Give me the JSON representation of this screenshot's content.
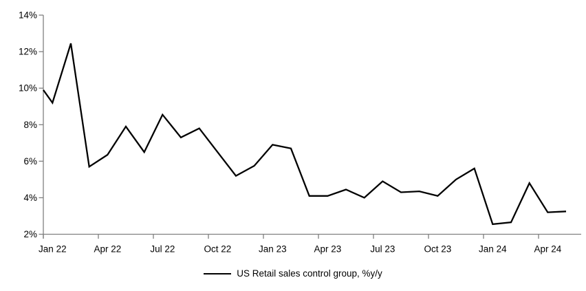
{
  "chart_data": {
    "type": "line",
    "title": "",
    "legend_label": "US Retail sales control group, %y/y",
    "series": [
      {
        "name": "US Retail sales control group, %y/y",
        "values": [
          9.9,
          9.2,
          12.45,
          5.7,
          6.35,
          7.9,
          6.5,
          8.55,
          7.3,
          7.8,
          6.5,
          5.2,
          5.75,
          6.9,
          6.7,
          4.1,
          4.1,
          4.45,
          4.0,
          4.9,
          4.3,
          4.35,
          4.1,
          5.0,
          5.6,
          2.55,
          2.65,
          4.8,
          3.2,
          3.25
        ]
      }
    ],
    "x": [
      "Dec 21",
      "Jan 22",
      "Feb 22",
      "Mar 22",
      "Apr 22",
      "May 22",
      "Jun 22",
      "Jul 22",
      "Aug 22",
      "Sep 22",
      "Oct 22",
      "Nov 22",
      "Dec 22",
      "Jan 23",
      "Feb 23",
      "Mar 23",
      "Apr 23",
      "May 23",
      "Jun 23",
      "Jul 23",
      "Aug 23",
      "Sep 23",
      "Oct 23",
      "Nov 23",
      "Dec 23",
      "Jan 24",
      "Feb 24",
      "Mar 24",
      "Apr 24",
      "May 24"
    ],
    "xtick_labels": [
      "Jan 22",
      "Apr 22",
      "Jul 22",
      "Oct 22",
      "Jan 23",
      "Apr 23",
      "Jul 23",
      "Oct 23",
      "Jan 24",
      "Apr 24"
    ],
    "yticks": [
      2,
      4,
      6,
      8,
      10,
      12,
      14
    ],
    "ytick_labels": [
      "2%",
      "4%",
      "6%",
      "8%",
      "10%",
      "12%",
      "14%"
    ],
    "ylim": [
      2,
      14
    ],
    "xlabel": "",
    "ylabel": "",
    "grid": false,
    "legend_position": "bottom",
    "line_color": "#000000",
    "axis_color": "#7f7f7f"
  }
}
